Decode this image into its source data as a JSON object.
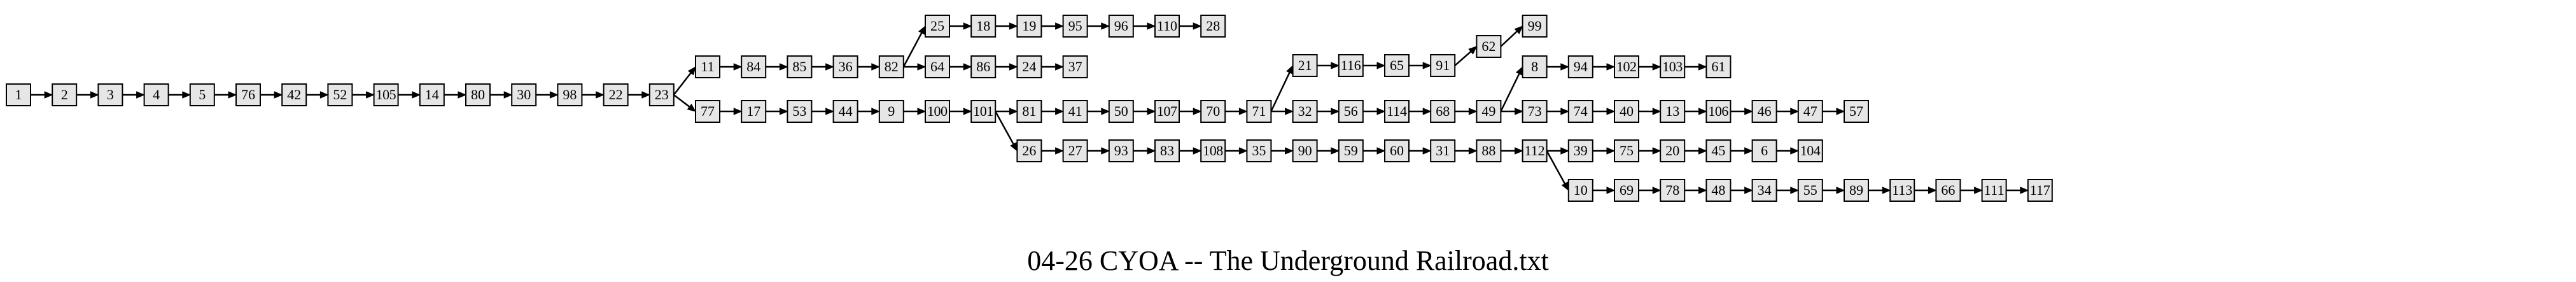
{
  "title": "04-26 CYOA -- The Underground Railroad.txt",
  "graph": {
    "nodes": [
      "1",
      "2",
      "3",
      "4",
      "5",
      "76",
      "42",
      "52",
      "105",
      "14",
      "80",
      "30",
      "98",
      "22",
      "23",
      "11",
      "84",
      "85",
      "36",
      "82",
      "25",
      "18",
      "19",
      "95",
      "96",
      "110",
      "28",
      "64",
      "86",
      "24",
      "37",
      "77",
      "17",
      "53",
      "44",
      "9",
      "100",
      "101",
      "81",
      "41",
      "50",
      "107",
      "70",
      "71",
      "21",
      "116",
      "65",
      "91",
      "62",
      "99",
      "32",
      "56",
      "114",
      "68",
      "49",
      "8",
      "94",
      "102",
      "103",
      "61",
      "73",
      "74",
      "40",
      "13",
      "106",
      "46",
      "47",
      "57",
      "26",
      "27",
      "93",
      "83",
      "108",
      "35",
      "90",
      "59",
      "60",
      "31",
      "88",
      "112",
      "39",
      "75",
      "20",
      "45",
      "6",
      "104",
      "10",
      "69",
      "78",
      "48",
      "34",
      "55",
      "89",
      "113",
      "66",
      "111",
      "117"
    ],
    "edges": [
      [
        "1",
        "2"
      ],
      [
        "2",
        "3"
      ],
      [
        "3",
        "4"
      ],
      [
        "4",
        "5"
      ],
      [
        "5",
        "76"
      ],
      [
        "76",
        "42"
      ],
      [
        "42",
        "52"
      ],
      [
        "52",
        "105"
      ],
      [
        "105",
        "14"
      ],
      [
        "14",
        "80"
      ],
      [
        "80",
        "30"
      ],
      [
        "30",
        "98"
      ],
      [
        "98",
        "22"
      ],
      [
        "22",
        "23"
      ],
      [
        "23",
        "11"
      ],
      [
        "23",
        "77"
      ],
      [
        "11",
        "84"
      ],
      [
        "84",
        "85"
      ],
      [
        "85",
        "36"
      ],
      [
        "36",
        "82"
      ],
      [
        "82",
        "25"
      ],
      [
        "82",
        "64"
      ],
      [
        "25",
        "18"
      ],
      [
        "18",
        "19"
      ],
      [
        "19",
        "95"
      ],
      [
        "95",
        "96"
      ],
      [
        "96",
        "110"
      ],
      [
        "110",
        "28"
      ],
      [
        "64",
        "86"
      ],
      [
        "86",
        "24"
      ],
      [
        "24",
        "37"
      ],
      [
        "77",
        "17"
      ],
      [
        "17",
        "53"
      ],
      [
        "53",
        "44"
      ],
      [
        "44",
        "9"
      ],
      [
        "9",
        "100"
      ],
      [
        "100",
        "101"
      ],
      [
        "101",
        "81"
      ],
      [
        "101",
        "26"
      ],
      [
        "81",
        "41"
      ],
      [
        "41",
        "50"
      ],
      [
        "50",
        "107"
      ],
      [
        "107",
        "70"
      ],
      [
        "70",
        "71"
      ],
      [
        "71",
        "21"
      ],
      [
        "71",
        "32"
      ],
      [
        "21",
        "116"
      ],
      [
        "116",
        "65"
      ],
      [
        "65",
        "91"
      ],
      [
        "91",
        "62"
      ],
      [
        "62",
        "99"
      ],
      [
        "32",
        "56"
      ],
      [
        "56",
        "114"
      ],
      [
        "114",
        "68"
      ],
      [
        "68",
        "49"
      ],
      [
        "49",
        "8"
      ],
      [
        "49",
        "73"
      ],
      [
        "8",
        "94"
      ],
      [
        "94",
        "102"
      ],
      [
        "102",
        "103"
      ],
      [
        "103",
        "61"
      ],
      [
        "73",
        "74"
      ],
      [
        "74",
        "40"
      ],
      [
        "40",
        "13"
      ],
      [
        "13",
        "106"
      ],
      [
        "106",
        "46"
      ],
      [
        "46",
        "47"
      ],
      [
        "47",
        "57"
      ],
      [
        "26",
        "27"
      ],
      [
        "27",
        "93"
      ],
      [
        "93",
        "83"
      ],
      [
        "83",
        "108"
      ],
      [
        "108",
        "35"
      ],
      [
        "35",
        "90"
      ],
      [
        "90",
        "59"
      ],
      [
        "59",
        "60"
      ],
      [
        "60",
        "31"
      ],
      [
        "31",
        "88"
      ],
      [
        "88",
        "112"
      ],
      [
        "112",
        "39"
      ],
      [
        "112",
        "10"
      ],
      [
        "39",
        "75"
      ],
      [
        "75",
        "20"
      ],
      [
        "20",
        "45"
      ],
      [
        "45",
        "6"
      ],
      [
        "6",
        "104"
      ],
      [
        "10",
        "69"
      ],
      [
        "69",
        "78"
      ],
      [
        "78",
        "48"
      ],
      [
        "48",
        "34"
      ],
      [
        "34",
        "55"
      ],
      [
        "55",
        "89"
      ],
      [
        "89",
        "113"
      ],
      [
        "113",
        "66"
      ],
      [
        "66",
        "111"
      ],
      [
        "111",
        "117"
      ]
    ]
  }
}
